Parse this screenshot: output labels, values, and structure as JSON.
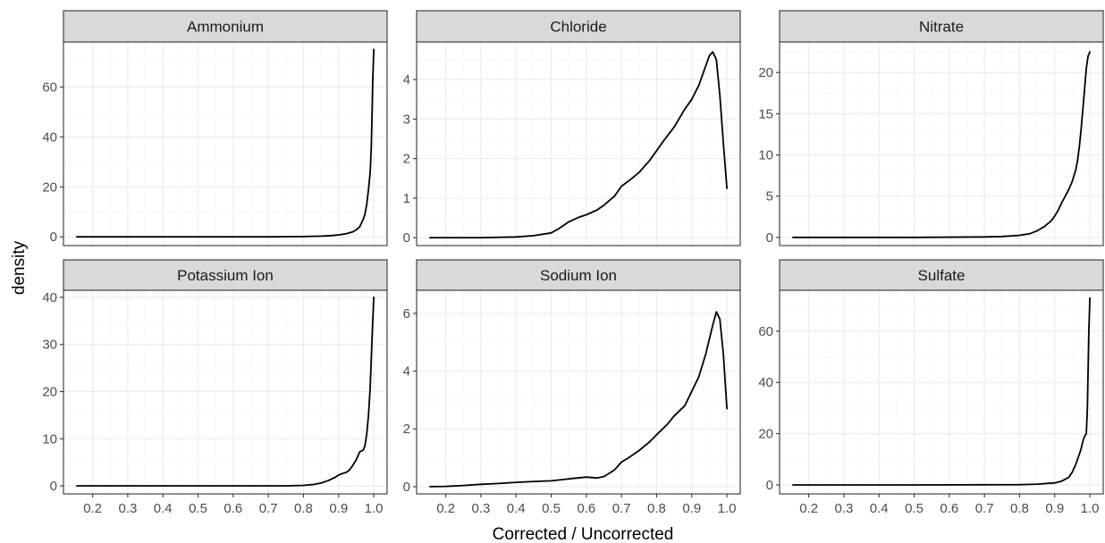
{
  "chart_data": {
    "type": "line",
    "xlabel": "Corrected / Uncorrected",
    "ylabel": "density",
    "x_ticks": [
      "0.2",
      "0.3",
      "0.4",
      "0.5",
      "0.6",
      "0.7",
      "0.8",
      "0.9",
      "1.0"
    ],
    "grid": true,
    "panels": [
      {
        "name": "Ammonium",
        "y_ticks": [
          "0",
          "20",
          "40",
          "60"
        ],
        "y_tick_values": [
          0,
          20,
          40,
          60
        ],
        "ylim": [
          -3.5,
          78
        ],
        "series": [
          {
            "x": [
              0.155,
              0.3,
              0.5,
              0.7,
              0.8,
              0.85,
              0.88,
              0.9,
              0.92,
              0.94,
              0.95,
              0.96,
              0.97,
              0.975,
              0.98,
              0.985,
              0.99,
              0.993,
              0.995,
              0.997,
              1.0
            ],
            "y": [
              0,
              0,
              0,
              0,
              0.1,
              0.3,
              0.5,
              0.8,
              1.2,
              2,
              2.8,
              4,
              7,
              9,
              13,
              19,
              26,
              36,
              48,
              62,
              75
            ]
          }
        ]
      },
      {
        "name": "Chloride",
        "y_ticks": [
          "0",
          "1",
          "2",
          "3",
          "4"
        ],
        "y_tick_values": [
          0,
          1,
          2,
          3,
          4
        ],
        "ylim": [
          -0.2,
          4.95
        ],
        "series": [
          {
            "x": [
              0.155,
              0.3,
              0.4,
              0.45,
              0.5,
              0.52,
              0.55,
              0.58,
              0.6,
              0.63,
              0.65,
              0.68,
              0.7,
              0.73,
              0.75,
              0.78,
              0.8,
              0.82,
              0.85,
              0.88,
              0.9,
              0.92,
              0.94,
              0.95,
              0.96,
              0.97,
              0.98,
              0.99,
              1.0
            ],
            "y": [
              0,
              0,
              0.02,
              0.05,
              0.12,
              0.22,
              0.4,
              0.52,
              0.58,
              0.7,
              0.82,
              1.05,
              1.3,
              1.5,
              1.65,
              1.95,
              2.2,
              2.45,
              2.8,
              3.25,
              3.5,
              3.85,
              4.35,
              4.6,
              4.7,
              4.5,
              3.6,
              2.4,
              1.25
            ]
          }
        ]
      },
      {
        "name": "Nitrate",
        "y_ticks": [
          "0",
          "5",
          "10",
          "15",
          "20"
        ],
        "y_tick_values": [
          0,
          5,
          10,
          15,
          20
        ],
        "ylim": [
          -1.0,
          23.7
        ],
        "series": [
          {
            "x": [
              0.155,
              0.5,
              0.7,
              0.75,
              0.8,
              0.83,
              0.85,
              0.87,
              0.89,
              0.9,
              0.91,
              0.92,
              0.93,
              0.94,
              0.95,
              0.96,
              0.965,
              0.97,
              0.975,
              0.98,
              0.985,
              0.99,
              0.995,
              1.0
            ],
            "y": [
              0,
              0,
              0.05,
              0.1,
              0.25,
              0.45,
              0.8,
              1.3,
              2.0,
              2.6,
              3.3,
              4.2,
              5.0,
              5.8,
              6.8,
              8.2,
              9.3,
              11,
              13,
              15.5,
              18,
              20.5,
              22,
              22.5
            ]
          }
        ]
      },
      {
        "name": "Potassium Ion",
        "y_ticks": [
          "0",
          "10",
          "20",
          "30",
          "40"
        ],
        "y_tick_values": [
          0,
          10,
          20,
          30,
          40
        ],
        "ylim": [
          -1.7,
          41.5
        ],
        "series": [
          {
            "x": [
              0.155,
              0.5,
              0.75,
              0.8,
              0.83,
              0.85,
              0.87,
              0.89,
              0.9,
              0.91,
              0.92,
              0.93,
              0.94,
              0.95,
              0.96,
              0.97,
              0.975,
              0.98,
              0.985,
              0.99,
              0.993,
              0.996,
              1.0
            ],
            "y": [
              0,
              0,
              0,
              0.1,
              0.3,
              0.6,
              1.1,
              1.8,
              2.3,
              2.6,
              2.8,
              3.3,
              4.3,
              5.5,
              7.2,
              7.6,
              8.5,
              11,
              15,
              21,
              27,
              33,
              40
            ]
          }
        ]
      },
      {
        "name": "Sodium Ion",
        "y_ticks": [
          "0",
          "2",
          "4",
          "6"
        ],
        "y_tick_values": [
          0,
          2,
          4,
          6
        ],
        "ylim": [
          -0.25,
          6.8
        ],
        "series": [
          {
            "x": [
              0.155,
              0.2,
              0.25,
              0.3,
              0.35,
              0.4,
              0.45,
              0.5,
              0.55,
              0.6,
              0.63,
              0.65,
              0.68,
              0.7,
              0.72,
              0.75,
              0.78,
              0.8,
              0.83,
              0.85,
              0.88,
              0.9,
              0.92,
              0.94,
              0.96,
              0.97,
              0.98,
              0.99,
              1.0
            ],
            "y": [
              0,
              0.01,
              0.04,
              0.08,
              0.11,
              0.15,
              0.18,
              0.2,
              0.27,
              0.33,
              0.3,
              0.35,
              0.58,
              0.85,
              1.0,
              1.25,
              1.55,
              1.8,
              2.15,
              2.45,
              2.8,
              3.3,
              3.8,
              4.6,
              5.6,
              6.05,
              5.8,
              4.6,
              2.7
            ]
          }
        ]
      },
      {
        "name": "Sulfate",
        "y_ticks": [
          "0",
          "20",
          "40",
          "60"
        ],
        "y_tick_values": [
          0,
          20,
          40,
          60
        ],
        "ylim": [
          -3.5,
          76
        ],
        "series": [
          {
            "x": [
              0.155,
              0.5,
              0.8,
              0.85,
              0.9,
              0.92,
              0.94,
              0.95,
              0.96,
              0.97,
              0.975,
              0.98,
              0.985,
              0.99,
              0.993,
              0.995,
              0.997,
              1.0
            ],
            "y": [
              0,
              0,
              0.1,
              0.3,
              0.8,
              1.5,
              3,
              5,
              8,
              12,
              14,
              17,
              19,
              20,
              30,
              45,
              60,
              73
            ]
          }
        ]
      }
    ]
  }
}
